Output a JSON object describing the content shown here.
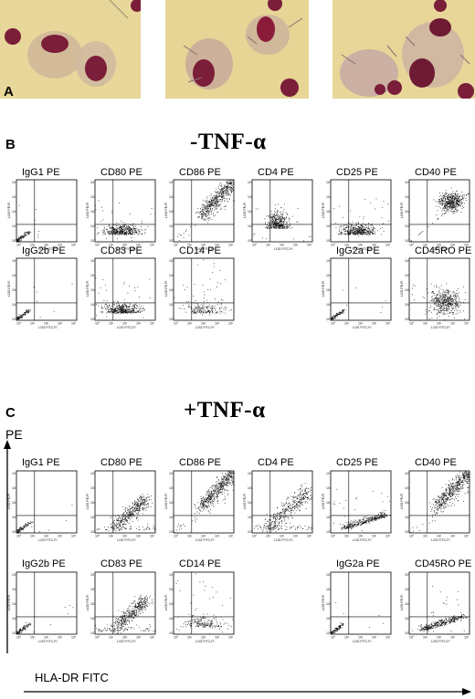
{
  "panels": {
    "a": {
      "letter": "A"
    },
    "b": {
      "letter": "B",
      "title": "-TNF-α"
    },
    "c": {
      "letter": "C",
      "title": "+TNF-α",
      "yaxis": "PE",
      "xaxis": "HLA-DR  FITC"
    }
  },
  "axis": {
    "x_label": "LOG FITC-FI",
    "y_label": "LOG PE-FI"
  },
  "ticks": [
    "10°",
    "10¹",
    "10²",
    "10³",
    "10⁴"
  ],
  "colors": {
    "photo_bg": "#e6d595",
    "cell_cytoplasm": "#cdb49a",
    "nucleus": "#7a1e3a",
    "dot": "#111111"
  },
  "chart_data": [
    {
      "type": "scatter",
      "panel": "B",
      "label": "IgG1  PE",
      "pattern": "origin"
    },
    {
      "type": "scatter",
      "panel": "B",
      "label": "CD80  PE",
      "pattern": "low-right"
    },
    {
      "type": "scatter",
      "panel": "B",
      "label": "CD86  PE",
      "pattern": "diagonal-high"
    },
    {
      "type": "scatter",
      "panel": "B",
      "label": "CD4  PE",
      "pattern": "low-mid-blob"
    },
    {
      "type": "scatter",
      "panel": "B",
      "label": "CD25  PE",
      "pattern": "low-right"
    },
    {
      "type": "scatter",
      "panel": "B",
      "label": "CD40  PE",
      "pattern": "upper-right-blob"
    },
    {
      "type": "scatter",
      "panel": "B",
      "label": "IgG2b  PE",
      "pattern": "origin"
    },
    {
      "type": "scatter",
      "panel": "B",
      "label": "CD83  PE",
      "pattern": "low-right"
    },
    {
      "type": "scatter",
      "panel": "B",
      "label": "CD14  PE",
      "pattern": "low-right-sparse"
    },
    {
      "type": "scatter",
      "panel": "B",
      "label": "IgG2a  PE",
      "pattern": "origin"
    },
    {
      "type": "scatter",
      "panel": "B",
      "label": "CD45RO  PE",
      "pattern": "mid-right-blob"
    },
    {
      "type": "scatter",
      "panel": "C",
      "label": "IgG1  PE",
      "pattern": "origin"
    },
    {
      "type": "scatter",
      "panel": "C",
      "label": "CD80  PE",
      "pattern": "diagonal-mid"
    },
    {
      "type": "scatter",
      "panel": "C",
      "label": "CD86  PE",
      "pattern": "diagonal-high"
    },
    {
      "type": "scatter",
      "panel": "C",
      "label": "CD4  PE",
      "pattern": "diagonal-spread"
    },
    {
      "type": "scatter",
      "panel": "C",
      "label": "CD25  PE",
      "pattern": "low-right-tail"
    },
    {
      "type": "scatter",
      "panel": "C",
      "label": "CD40  PE",
      "pattern": "diagonal-high"
    },
    {
      "type": "scatter",
      "panel": "C",
      "label": "IgG2b  PE",
      "pattern": "origin"
    },
    {
      "type": "scatter",
      "panel": "C",
      "label": "CD83  PE",
      "pattern": "diagonal-mid"
    },
    {
      "type": "scatter",
      "panel": "C",
      "label": "CD14  PE",
      "pattern": "low-right-sparse"
    },
    {
      "type": "scatter",
      "panel": "C",
      "label": "IgG2a  PE",
      "pattern": "origin"
    },
    {
      "type": "scatter",
      "panel": "C",
      "label": "CD45RO  PE",
      "pattern": "low-right-tail"
    }
  ]
}
